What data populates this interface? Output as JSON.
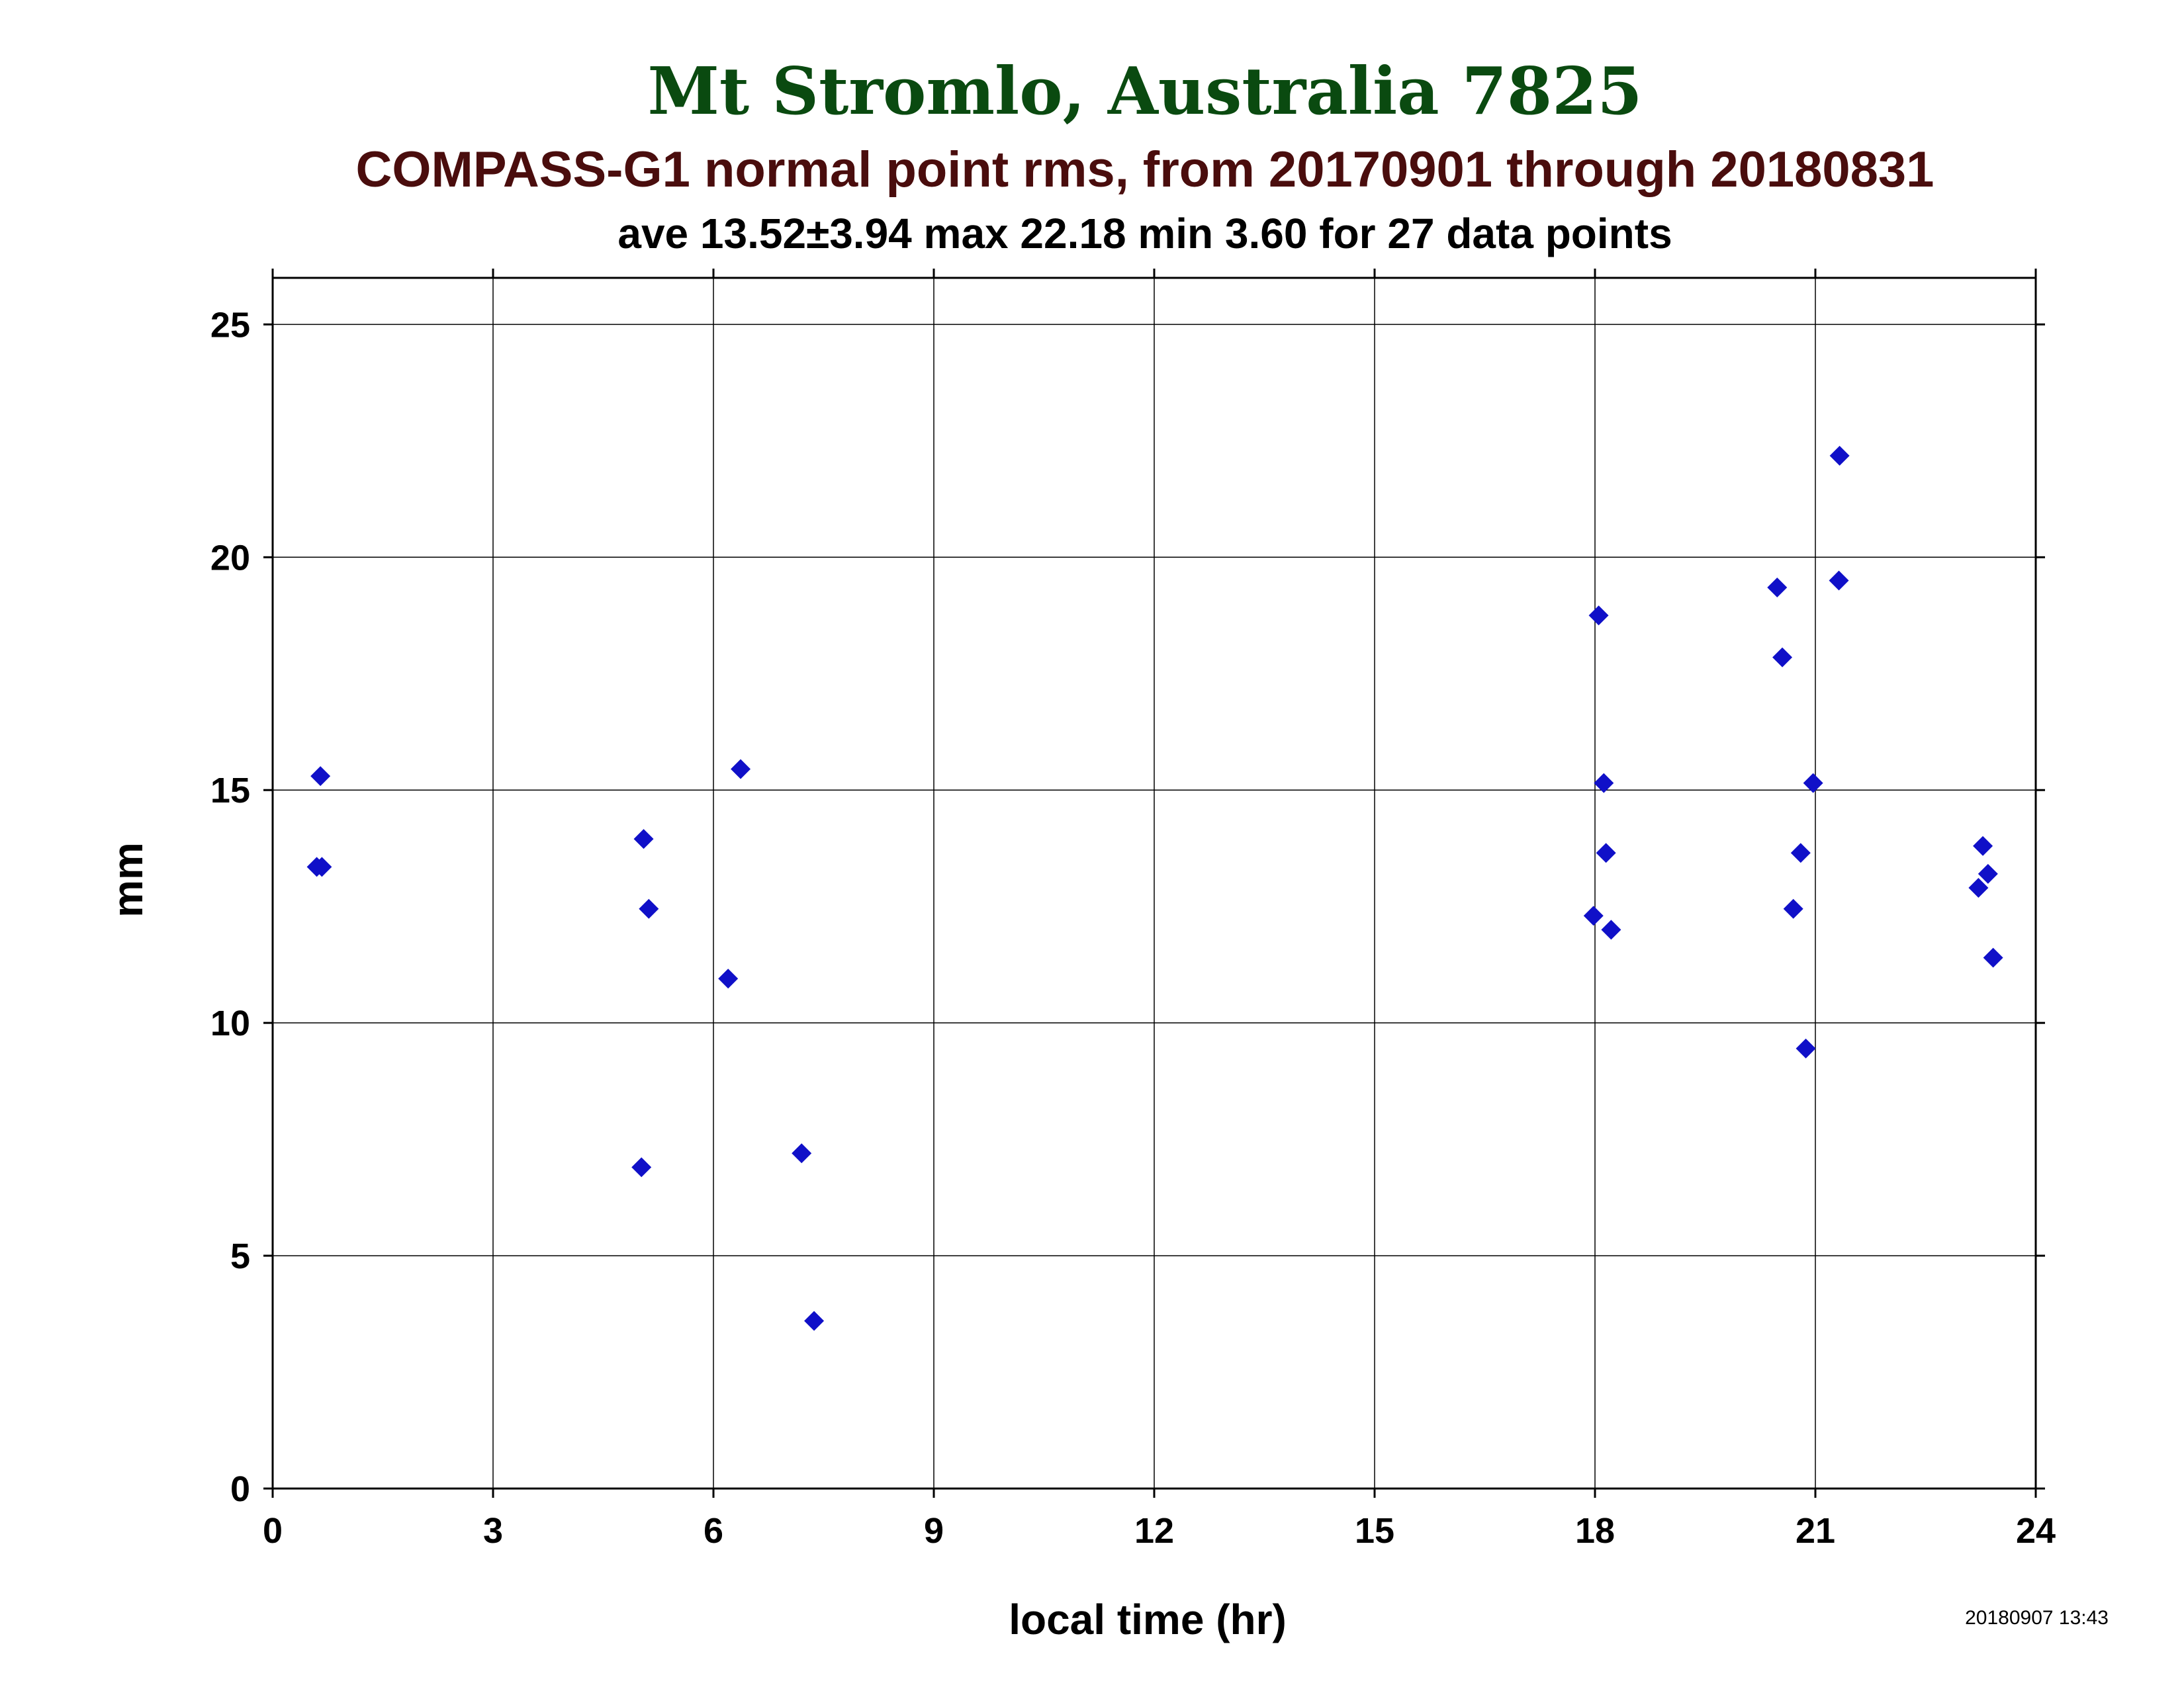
{
  "colors": {
    "title": "#0a4a10",
    "subtitle": "#4a0d0d",
    "marker": "#1010c8",
    "grid": "#000000",
    "text": "#000000"
  },
  "chart_data": {
    "type": "scatter",
    "title": "Mt Stromlo, Australia 7825",
    "subtitle": "COMPASS-G1 normal point rms, from 20170901 through 20180831",
    "stats_line": "ave 13.52±3.94 max 22.18 min 3.60 for 27 data points",
    "xlabel": "local time (hr)",
    "ylabel": "mm",
    "xlim": [
      0,
      24
    ],
    "ylim": [
      0,
      26
    ],
    "x_ticks": [
      0,
      3,
      6,
      9,
      12,
      15,
      18,
      21,
      24
    ],
    "y_ticks": [
      0,
      5,
      10,
      15,
      20,
      25
    ],
    "grid": true,
    "marker": "diamond",
    "timestamp": "20180907 13:43",
    "points": [
      {
        "x": 0.6,
        "y": 13.35
      },
      {
        "x": 0.67,
        "y": 13.35
      },
      {
        "x": 0.65,
        "y": 15.3
      },
      {
        "x": 5.02,
        "y": 6.9
      },
      {
        "x": 5.05,
        "y": 13.95
      },
      {
        "x": 5.12,
        "y": 12.45
      },
      {
        "x": 6.2,
        "y": 10.95
      },
      {
        "x": 6.37,
        "y": 15.45
      },
      {
        "x": 7.2,
        "y": 7.2
      },
      {
        "x": 7.37,
        "y": 3.6
      },
      {
        "x": 17.98,
        "y": 12.3
      },
      {
        "x": 18.05,
        "y": 18.75
      },
      {
        "x": 18.12,
        "y": 15.15
      },
      {
        "x": 18.15,
        "y": 13.65
      },
      {
        "x": 18.22,
        "y": 12.0
      },
      {
        "x": 20.48,
        "y": 19.35
      },
      {
        "x": 20.55,
        "y": 17.85
      },
      {
        "x": 20.7,
        "y": 12.45
      },
      {
        "x": 20.8,
        "y": 13.65
      },
      {
        "x": 20.87,
        "y": 9.45
      },
      {
        "x": 20.97,
        "y": 15.15
      },
      {
        "x": 21.32,
        "y": 19.5
      },
      {
        "x": 21.33,
        "y": 22.18
      },
      {
        "x": 23.22,
        "y": 12.9
      },
      {
        "x": 23.28,
        "y": 13.8
      },
      {
        "x": 23.35,
        "y": 13.2
      },
      {
        "x": 23.42,
        "y": 11.4
      }
    ]
  }
}
